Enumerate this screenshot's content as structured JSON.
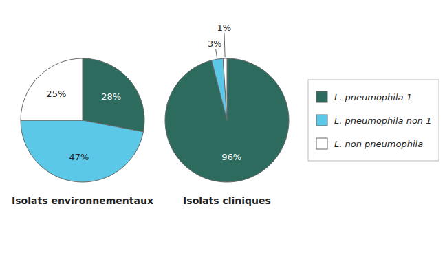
{
  "chart_data": [
    {
      "type": "pie",
      "title": "Isolats environnementaux",
      "categories": [
        "L. pneumophila 1",
        "L. pneumophila non 1",
        "L. non pneumophila"
      ],
      "values": [
        28,
        47,
        25
      ],
      "value_labels": [
        "28%",
        "47%",
        "25%"
      ],
      "colors": [
        "#2d6b5e",
        "#5bc8e8",
        "#ffffff"
      ],
      "data_labels": true,
      "legend": "right"
    },
    {
      "type": "pie",
      "title": "Isolats cliniques",
      "values": [
        96,
        3,
        1
      ],
      "value_labels": [
        "96%",
        "3%",
        "1%"
      ],
      "colors": [
        "#2d6b5e",
        "#5bc8e8",
        "#ffffff"
      ],
      "data_labels": true
    }
  ]
}
